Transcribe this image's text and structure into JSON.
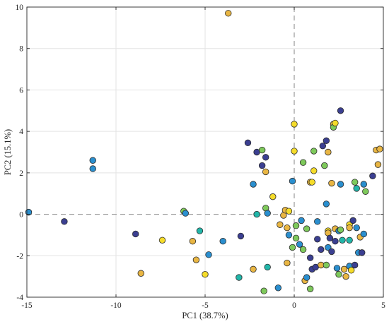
{
  "chart_data": {
    "type": "scatter",
    "title": "",
    "xlabel": "PC1 (38.7%)",
    "ylabel": "PC2 (15.1%)",
    "xlim": [
      -15,
      5
    ],
    "ylim": [
      -4,
      10
    ],
    "xticks": [
      -15,
      -10,
      -5,
      0,
      5
    ],
    "yticks": [
      -4,
      -2,
      0,
      2,
      4,
      6,
      8,
      10
    ],
    "grid": true,
    "reference_lines": {
      "x": 0,
      "y": 0,
      "style": "dashed"
    },
    "colormap": "parula (dark blue to yellow)",
    "palette": [
      "#3b3f91",
      "#2a8fcf",
      "#22b6a9",
      "#7ec95b",
      "#e9b643",
      "#f5dc2a"
    ],
    "points": [
      {
        "x": -14.9,
        "y": 0.1,
        "c": 1
      },
      {
        "x": -12.9,
        "y": -0.35,
        "c": 0
      },
      {
        "x": -11.3,
        "y": 2.6,
        "c": 1
      },
      {
        "x": -11.3,
        "y": 2.2,
        "c": 1
      },
      {
        "x": -8.9,
        "y": -0.95,
        "c": 0
      },
      {
        "x": -8.6,
        "y": -2.85,
        "c": 4
      },
      {
        "x": -7.4,
        "y": -1.25,
        "c": 5
      },
      {
        "x": -6.2,
        "y": 0.15,
        "c": 3
      },
      {
        "x": -6.1,
        "y": 0.05,
        "c": 1
      },
      {
        "x": -5.7,
        "y": -1.3,
        "c": 4
      },
      {
        "x": -5.5,
        "y": -2.2,
        "c": 4
      },
      {
        "x": -5.3,
        "y": -0.8,
        "c": 2
      },
      {
        "x": -5.0,
        "y": -2.9,
        "c": 5
      },
      {
        "x": -4.8,
        "y": -1.95,
        "c": 1
      },
      {
        "x": -4.0,
        "y": -1.3,
        "c": 1
      },
      {
        "x": -3.7,
        "y": 9.7,
        "c": 4
      },
      {
        "x": -3.1,
        "y": -3.05,
        "c": 2
      },
      {
        "x": -3.0,
        "y": -1.05,
        "c": 0
      },
      {
        "x": -2.6,
        "y": 3.45,
        "c": 0
      },
      {
        "x": -2.3,
        "y": 1.45,
        "c": 1
      },
      {
        "x": -2.3,
        "y": -2.65,
        "c": 4
      },
      {
        "x": -2.1,
        "y": 3.0,
        "c": 0
      },
      {
        "x": -2.1,
        "y": 0.0,
        "c": 2
      },
      {
        "x": -1.8,
        "y": 3.1,
        "c": 3
      },
      {
        "x": -1.8,
        "y": 2.35,
        "c": 0
      },
      {
        "x": -1.7,
        "y": -3.7,
        "c": 3
      },
      {
        "x": -1.6,
        "y": 2.75,
        "c": 0
      },
      {
        "x": -1.6,
        "y": 2.05,
        "c": 4
      },
      {
        "x": -1.6,
        "y": 0.3,
        "c": 3
      },
      {
        "x": -1.5,
        "y": -2.55,
        "c": 2
      },
      {
        "x": -1.5,
        "y": 0.05,
        "c": 1
      },
      {
        "x": -1.2,
        "y": 0.85,
        "c": 5
      },
      {
        "x": -0.9,
        "y": -3.55,
        "c": 1
      },
      {
        "x": -0.8,
        "y": -0.5,
        "c": 4
      },
      {
        "x": -0.6,
        "y": -0.05,
        "c": 4
      },
      {
        "x": -0.5,
        "y": 0.2,
        "c": 4
      },
      {
        "x": -0.4,
        "y": -0.65,
        "c": 4
      },
      {
        "x": -0.4,
        "y": -2.35,
        "c": 4
      },
      {
        "x": -0.3,
        "y": 0.15,
        "c": 5
      },
      {
        "x": -0.3,
        "y": -1.0,
        "c": 1
      },
      {
        "x": -0.1,
        "y": 1.6,
        "c": 1
      },
      {
        "x": -0.1,
        "y": -1.6,
        "c": 3
      },
      {
        "x": 0.0,
        "y": 4.35,
        "c": 5
      },
      {
        "x": 0.0,
        "y": 3.05,
        "c": 5
      },
      {
        "x": 0.1,
        "y": -0.55,
        "c": 3
      },
      {
        "x": 0.1,
        "y": -1.15,
        "c": 3
      },
      {
        "x": 0.3,
        "y": -1.45,
        "c": 1
      },
      {
        "x": 0.4,
        "y": -0.3,
        "c": 1
      },
      {
        "x": 0.5,
        "y": -1.7,
        "c": 3
      },
      {
        "x": 0.5,
        "y": 2.5,
        "c": 3
      },
      {
        "x": 0.6,
        "y": -3.2,
        "c": 4
      },
      {
        "x": 0.7,
        "y": -0.7,
        "c": 3
      },
      {
        "x": 0.7,
        "y": -3.05,
        "c": 1
      },
      {
        "x": 0.9,
        "y": -3.6,
        "c": 3
      },
      {
        "x": 0.9,
        "y": 1.55,
        "c": 4
      },
      {
        "x": 0.9,
        "y": -2.1,
        "c": 0
      },
      {
        "x": 1.0,
        "y": -2.65,
        "c": 0
      },
      {
        "x": 1.0,
        "y": 1.55,
        "c": 5
      },
      {
        "x": 1.1,
        "y": 3.05,
        "c": 3
      },
      {
        "x": 1.1,
        "y": 2.1,
        "c": 5
      },
      {
        "x": 1.2,
        "y": -2.55,
        "c": 0
      },
      {
        "x": 1.3,
        "y": -0.35,
        "c": 1
      },
      {
        "x": 1.3,
        "y": -1.2,
        "c": 0
      },
      {
        "x": 1.5,
        "y": -1.7,
        "c": 0
      },
      {
        "x": 1.5,
        "y": -2.45,
        "c": 4
      },
      {
        "x": 1.6,
        "y": 3.3,
        "c": 0
      },
      {
        "x": 1.7,
        "y": 2.35,
        "c": 3
      },
      {
        "x": 1.8,
        "y": -2.45,
        "c": 3
      },
      {
        "x": 1.8,
        "y": 3.55,
        "c": 0
      },
      {
        "x": 1.8,
        "y": 0.5,
        "c": 1
      },
      {
        "x": 1.9,
        "y": -0.8,
        "c": 5
      },
      {
        "x": 1.9,
        "y": -1.6,
        "c": 1
      },
      {
        "x": 1.9,
        "y": 3.0,
        "c": 4
      },
      {
        "x": 1.9,
        "y": -0.9,
        "c": 4
      },
      {
        "x": 2.0,
        "y": -1.15,
        "c": 0
      },
      {
        "x": 2.1,
        "y": 1.5,
        "c": 4
      },
      {
        "x": 2.1,
        "y": -1.8,
        "c": 0
      },
      {
        "x": 2.2,
        "y": 4.35,
        "c": 4
      },
      {
        "x": 2.2,
        "y": 4.2,
        "c": 3
      },
      {
        "x": 2.3,
        "y": 4.4,
        "c": 5
      },
      {
        "x": 2.3,
        "y": -1.3,
        "c": 0
      },
      {
        "x": 2.3,
        "y": -0.7,
        "c": 4
      },
      {
        "x": 2.4,
        "y": -2.6,
        "c": 1
      },
      {
        "x": 2.5,
        "y": -0.8,
        "c": 1
      },
      {
        "x": 2.5,
        "y": -2.9,
        "c": 3
      },
      {
        "x": 2.6,
        "y": 5.0,
        "c": 0
      },
      {
        "x": 2.6,
        "y": 1.45,
        "c": 1
      },
      {
        "x": 2.6,
        "y": -0.75,
        "c": 3
      },
      {
        "x": 2.7,
        "y": -1.25,
        "c": 2
      },
      {
        "x": 2.8,
        "y": -2.65,
        "c": 4
      },
      {
        "x": 2.9,
        "y": -3.0,
        "c": 4
      },
      {
        "x": 3.1,
        "y": -0.5,
        "c": 5
      },
      {
        "x": 3.1,
        "y": -0.65,
        "c": 4
      },
      {
        "x": 3.1,
        "y": -1.25,
        "c": 2
      },
      {
        "x": 3.1,
        "y": -2.5,
        "c": 1
      },
      {
        "x": 3.2,
        "y": -2.7,
        "c": 5
      },
      {
        "x": 3.3,
        "y": -0.3,
        "c": 0
      },
      {
        "x": 3.4,
        "y": -2.45,
        "c": 0
      },
      {
        "x": 3.4,
        "y": 1.55,
        "c": 3
      },
      {
        "x": 3.5,
        "y": 1.25,
        "c": 2
      },
      {
        "x": 3.5,
        "y": -0.65,
        "c": 1
      },
      {
        "x": 3.6,
        "y": -1.85,
        "c": 1
      },
      {
        "x": 3.7,
        "y": -1.1,
        "c": 4
      },
      {
        "x": 3.8,
        "y": -1.85,
        "c": 0
      },
      {
        "x": 3.9,
        "y": 1.45,
        "c": 1
      },
      {
        "x": 3.9,
        "y": -0.95,
        "c": 1
      },
      {
        "x": 4.0,
        "y": 1.1,
        "c": 3
      },
      {
        "x": 4.4,
        "y": 1.85,
        "c": 0
      },
      {
        "x": 4.6,
        "y": 3.1,
        "c": 4
      },
      {
        "x": 4.7,
        "y": 2.4,
        "c": 4
      },
      {
        "x": 4.8,
        "y": 3.15,
        "c": 4
      }
    ]
  }
}
